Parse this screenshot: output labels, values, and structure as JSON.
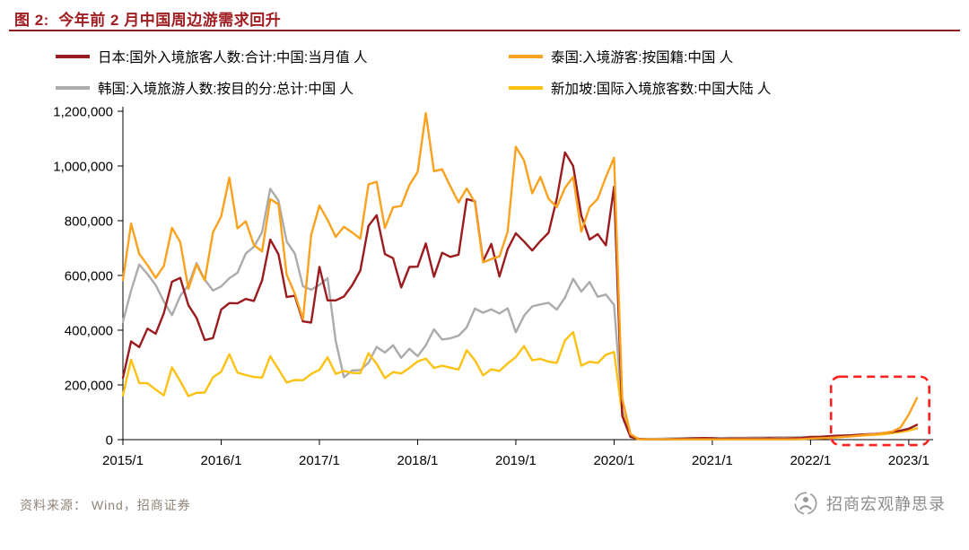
{
  "header": {
    "title_prefix": "图 2:",
    "title": "今年前 2 月中国周边游需求回升",
    "accent_color": "#8e1c20"
  },
  "legend": [
    {
      "key": "japan",
      "label": "日本:国外入境旅客人数:合计:中国:当月值 人",
      "color": "#9b1b1e"
    },
    {
      "key": "thailand",
      "label": "泰国:入境游客:按国籍:中国 人",
      "color": "#faa21e"
    },
    {
      "key": "korea",
      "label": "韩国:入境旅游人数:按目的分:总计:中国 人",
      "color": "#ababab"
    },
    {
      "key": "singapore",
      "label": "新加坡:国际入境旅客数:中国大陆 人",
      "color": "#fdc111"
    }
  ],
  "chart_data": {
    "type": "line",
    "x_range": [
      "2015/1",
      "2023/2"
    ],
    "x_step_months": 1,
    "x_tick_labels": [
      "2015/1",
      "2016/1",
      "2017/1",
      "2018/1",
      "2019/1",
      "2020/1",
      "2021/1",
      "2022/1",
      "2023/1"
    ],
    "x_tick_month_index": [
      0,
      12,
      24,
      36,
      48,
      60,
      72,
      84,
      96
    ],
    "ylim": [
      0,
      1200000
    ],
    "y_ticks": [
      0,
      200000,
      400000,
      600000,
      800000,
      1000000,
      1200000
    ],
    "grid": false,
    "legend_position": "top",
    "series": [
      {
        "key": "japan",
        "name": "日本:国外入境旅客人数:合计:中国:当月值 人",
        "color": "#9b1b1e",
        "values": [
          226000,
          359000,
          338000,
          406000,
          387000,
          462000,
          577000,
          591000,
          491000,
          445000,
          364000,
          371000,
          475000,
          499000,
          498000,
          514000,
          507000,
          582000,
          731000,
          677000,
          521000,
          526000,
          432000,
          428000,
          631000,
          509000,
          509000,
          523000,
          564000,
          618000,
          781000,
          820000,
          678000,
          663000,
          556000,
          631000,
          632000,
          717000,
          595000,
          683000,
          668000,
          676000,
          879000,
          871000,
          652000,
          715000,
          596000,
          696000,
          754000,
          724000,
          691000,
          726000,
          756000,
          881000,
          1050000,
          1000000,
          819000,
          731000,
          751000,
          710000,
          924000,
          87000,
          10000,
          3000,
          1000,
          1000,
          1000,
          2000,
          3000,
          4000,
          5000,
          6000,
          5000,
          3000,
          4000,
          4000,
          4000,
          4000,
          4000,
          5000,
          4000,
          4000,
          5000,
          6000,
          10000,
          10000,
          12000,
          14000,
          15000,
          16000,
          18000,
          20000,
          21000,
          25000,
          28000,
          33000,
          40000,
          54000
        ]
      },
      {
        "key": "thailand",
        "name": "泰国:入境游客:按国籍:中国 人",
        "color": "#faa21e",
        "values": [
          583000,
          790000,
          679000,
          638000,
          591000,
          634000,
          774000,
          722000,
          551000,
          640000,
          582000,
          758000,
          815000,
          958000,
          772000,
          798000,
          711000,
          688000,
          879000,
          860000,
          603000,
          533000,
          440000,
          748000,
          855000,
          803000,
          741000,
          778000,
          757000,
          734000,
          933000,
          942000,
          773000,
          849000,
          854000,
          930000,
          978000,
          1193000,
          981000,
          988000,
          926000,
          867000,
          918000,
          867000,
          648000,
          660000,
          670000,
          760000,
          1070000,
          1020000,
          900000,
          960000,
          880000,
          850000,
          920000,
          960000,
          760000,
          850000,
          880000,
          960000,
          1030000,
          150000,
          20000,
          2000,
          1000,
          1000,
          1000,
          1000,
          1000,
          1000,
          1000,
          1000,
          1000,
          1000,
          1000,
          1000,
          1000,
          1000,
          1000,
          1000,
          1000,
          1000,
          1000,
          2000,
          4000,
          5000,
          6000,
          8000,
          10000,
          12000,
          15000,
          18000,
          20000,
          25000,
          30000,
          45000,
          92000,
          152000
        ]
      },
      {
        "key": "korea",
        "name": "韩国:入境旅游人数:按目的分:总计:中国 人",
        "color": "#ababab",
        "values": [
          430000,
          545000,
          640000,
          605000,
          565000,
          505000,
          455000,
          525000,
          565000,
          645000,
          585000,
          545000,
          560000,
          590000,
          610000,
          680000,
          705000,
          758000,
          917000,
          873000,
          724000,
          680000,
          560000,
          548000,
          565000,
          590000,
          360000,
          228000,
          253000,
          254000,
          281000,
          339000,
          318000,
          345000,
          299000,
          332000,
          305000,
          345000,
          403000,
          366000,
          370000,
          380000,
          410000,
          479000,
          464000,
          476000,
          461000,
          480000,
          392000,
          453000,
          487000,
          494000,
          500000,
          475000,
          519000,
          588000,
          541000,
          576000,
          522000,
          530000,
          492000,
          105000,
          16000,
          3000,
          3000,
          3000,
          4000,
          5000,
          5000,
          6000,
          6000,
          6000,
          6000,
          6000,
          7000,
          7000,
          7000,
          8000,
          8000,
          8000,
          9000,
          9000,
          9000,
          10000,
          10000,
          10000,
          11000,
          11000,
          12000,
          13000,
          15000,
          18000,
          20000,
          23000,
          28000,
          32000,
          35000,
          40000
        ]
      },
      {
        "key": "singapore",
        "name": "新加坡:国际入境旅客数:中国大陆 人",
        "color": "#fdc111",
        "values": [
          162000,
          292000,
          207000,
          206000,
          183000,
          162000,
          264000,
          214000,
          159000,
          171000,
          172000,
          228000,
          248000,
          312000,
          245000,
          236000,
          229000,
          227000,
          305000,
          257000,
          209000,
          218000,
          217000,
          240000,
          255000,
          301000,
          240000,
          251000,
          244000,
          243000,
          316000,
          277000,
          225000,
          247000,
          242000,
          262000,
          286000,
          296000,
          262000,
          270000,
          263000,
          256000,
          327000,
          290000,
          235000,
          257000,
          251000,
          278000,
          302000,
          342000,
          290000,
          295000,
          285000,
          280000,
          363000,
          393000,
          270000,
          285000,
          280000,
          310000,
          320000,
          95000,
          10000,
          1000,
          1000,
          1000,
          1000,
          1000,
          1000,
          2000,
          2000,
          2000,
          2000,
          2000,
          2000,
          3000,
          3000,
          3000,
          3000,
          4000,
          4000,
          4000,
          5000,
          5000,
          5000,
          6000,
          7000,
          8000,
          10000,
          12000,
          14000,
          16000,
          18000,
          20000,
          24000,
          28000,
          33000,
          42000
        ]
      }
    ],
    "annotation": {
      "shape": "dashed-rect",
      "color": "#ff2020",
      "month_start": 86.5,
      "month_end": 98.5,
      "value_top": 230000,
      "value_bottom": -20000
    }
  },
  "footer": {
    "source": "资料来源： Wind，招商证券",
    "brand": "招商宏观静思录"
  }
}
